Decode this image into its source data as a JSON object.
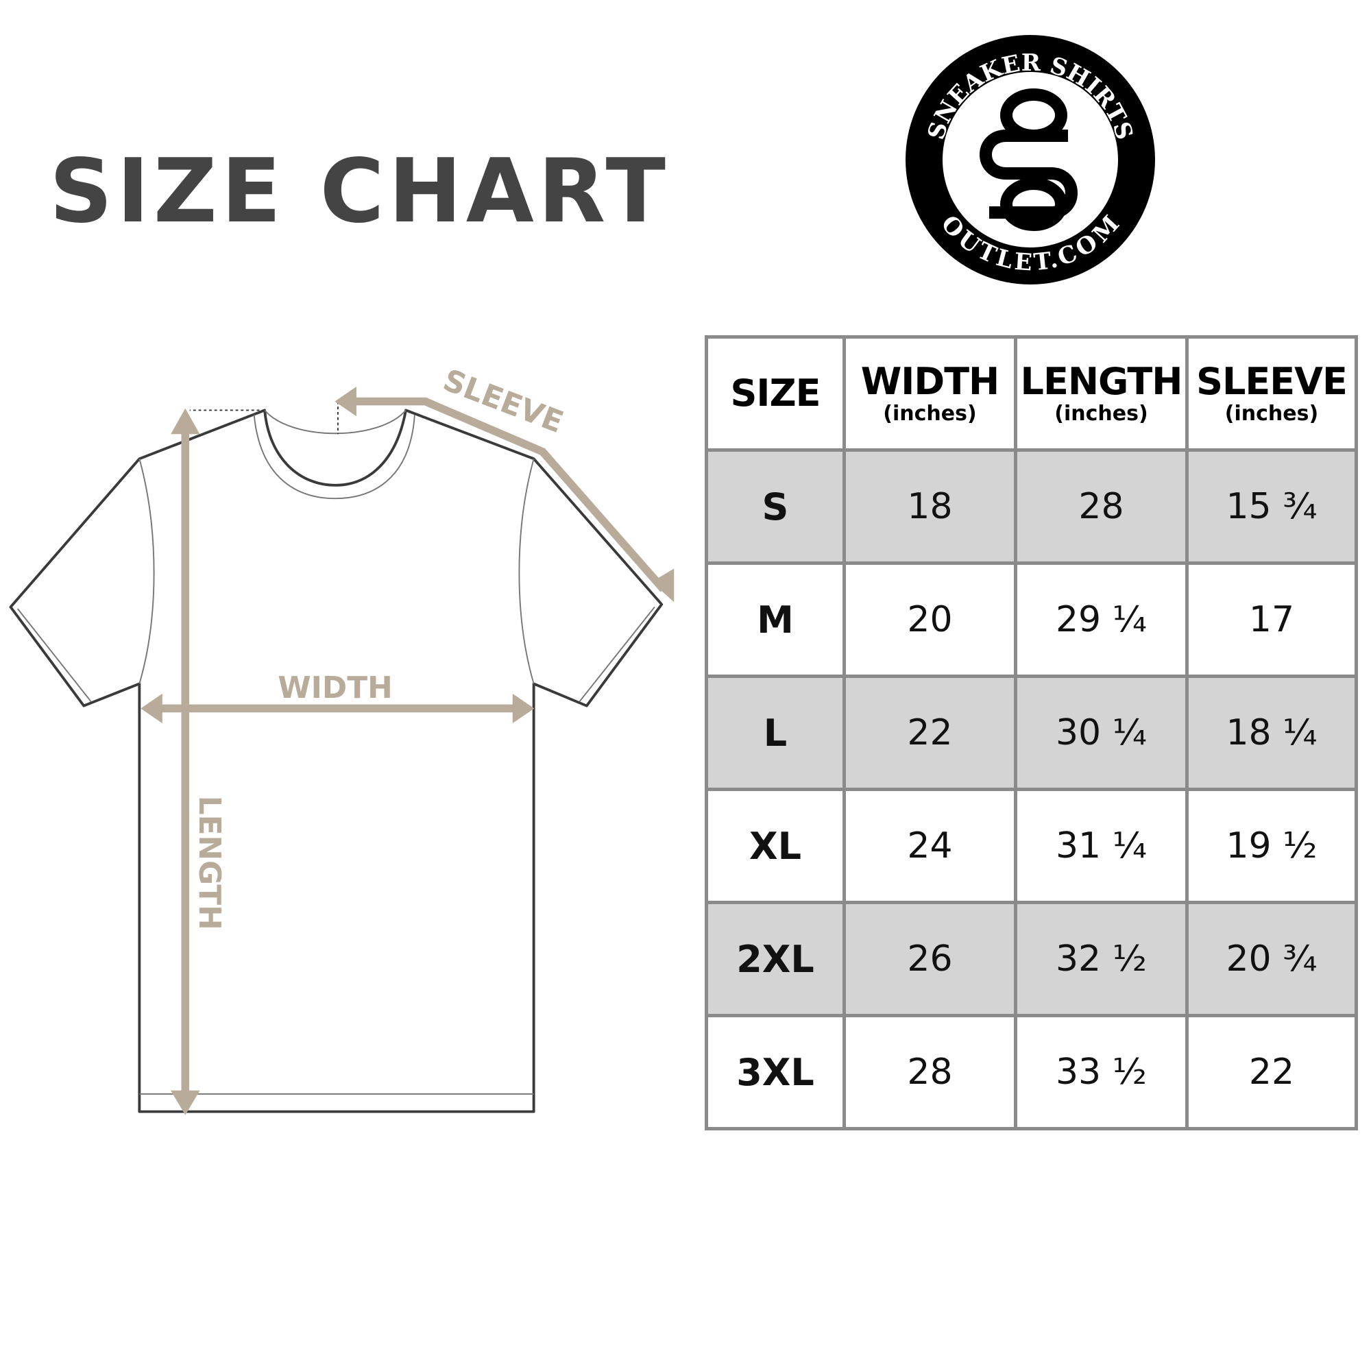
{
  "title": "SIZE CHART",
  "logo": {
    "top_text": "SNEAKER SHIRTS",
    "bottom_text": "OUTLET.COM",
    "monogram": "SO"
  },
  "diagram": {
    "sleeve_label": "SLEEVE",
    "width_label": "WIDTH",
    "length_label": "LENGTH",
    "arrow_color": "#b8ab9a"
  },
  "table": {
    "headers": [
      {
        "main": "SIZE",
        "sub": ""
      },
      {
        "main": "WIDTH",
        "sub": "(inches)"
      },
      {
        "main": "LENGTH",
        "sub": "(inches)"
      },
      {
        "main": "SLEEVE",
        "sub": "(inches)"
      }
    ],
    "rows": [
      [
        "S",
        "18",
        "28",
        "15 ¾"
      ],
      [
        "M",
        "20",
        "29 ¼",
        "17"
      ],
      [
        "L",
        "22",
        "30 ¼",
        "18 ¼"
      ],
      [
        "XL",
        "24",
        "31 ¼",
        "19 ½"
      ],
      [
        "2XL",
        "26",
        "32 ½",
        "20 ¾"
      ],
      [
        "3XL",
        "28",
        "33 ½",
        "22"
      ]
    ]
  }
}
